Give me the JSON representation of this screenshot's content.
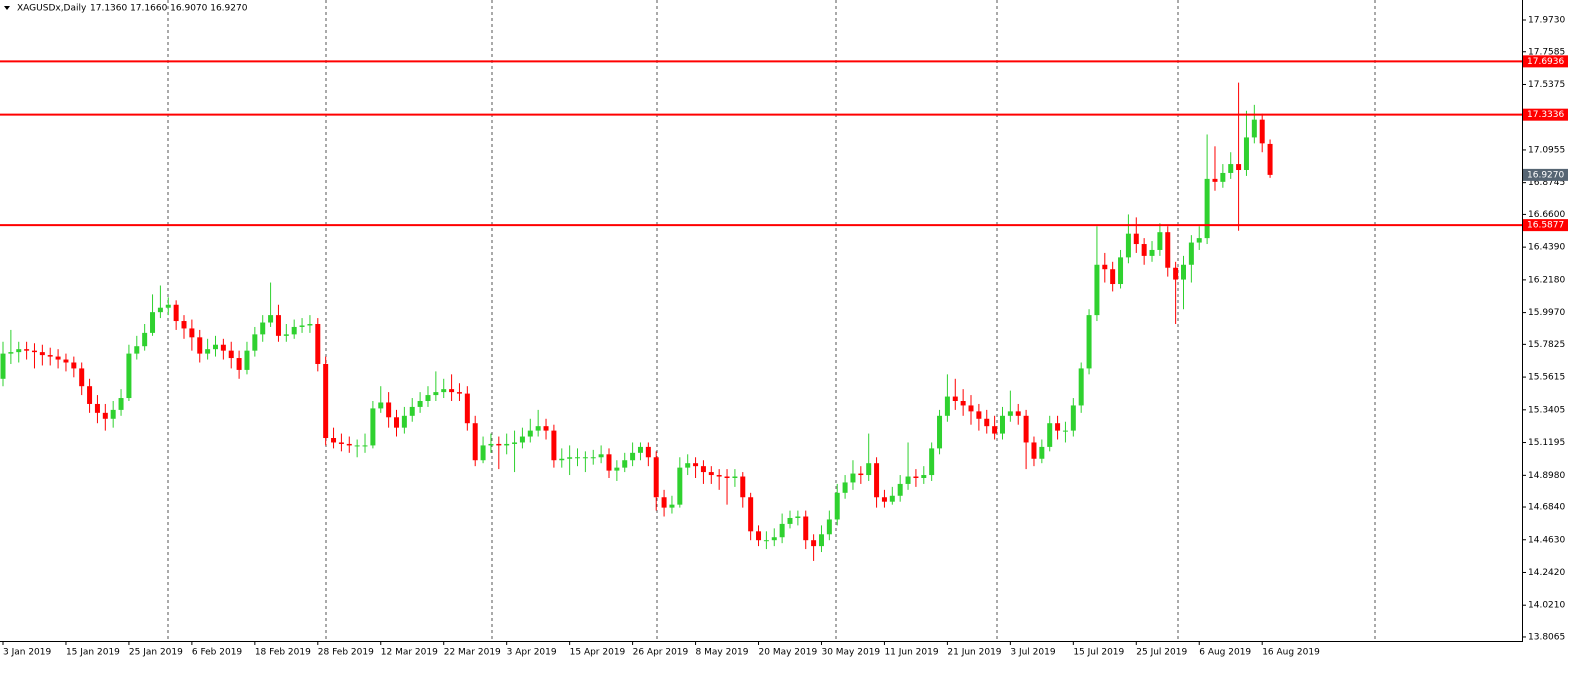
{
  "header": {
    "symbol": "XAGUSDx,Daily",
    "ohlc_text": "17.1360 17.1660 16.9070 16.9270"
  },
  "chart_data": {
    "type": "candlestick",
    "up_color": "#2fd12f",
    "down_color": "#ff0000",
    "level_color": "#ff0000",
    "ylim": [
      13.786,
      18.108
    ],
    "yticks": [
      {
        "value": 17.973,
        "label": "17.9730"
      },
      {
        "value": 17.7585,
        "label": "17.7585"
      },
      {
        "value": 17.5375,
        "label": "17.5375"
      },
      {
        "value": 17.0955,
        "label": "17.0955"
      },
      {
        "value": 16.8745,
        "label": "16.8745"
      },
      {
        "value": 16.66,
        "label": "16.6600"
      },
      {
        "value": 16.439,
        "label": "16.4390"
      },
      {
        "value": 16.218,
        "label": "16.2180"
      },
      {
        "value": 15.997,
        "label": "15.9970"
      },
      {
        "value": 15.7825,
        "label": "15.7825"
      },
      {
        "value": 15.5615,
        "label": "15.5615"
      },
      {
        "value": 15.3405,
        "label": "15.3405"
      },
      {
        "value": 15.1195,
        "label": "15.1195"
      },
      {
        "value": 14.898,
        "label": "14.8980"
      },
      {
        "value": 14.684,
        "label": "14.6840"
      },
      {
        "value": 14.463,
        "label": "14.4630"
      },
      {
        "value": 14.242,
        "label": "14.2420"
      },
      {
        "value": 14.021,
        "label": "14.0210"
      },
      {
        "value": 13.8065,
        "label": "13.8065"
      }
    ],
    "levels": [
      17.6936,
      17.3336,
      16.5877
    ],
    "last_price": {
      "value": 16.927,
      "label": "16.9270"
    },
    "categories": [
      "3 Jan 2019",
      null,
      null,
      null,
      null,
      null,
      null,
      null,
      "15 Jan 2019",
      null,
      null,
      null,
      null,
      null,
      null,
      null,
      "25 Jan 2019",
      null,
      null,
      null,
      null,
      null,
      null,
      null,
      "6 Feb 2019",
      null,
      null,
      null,
      null,
      null,
      null,
      null,
      "18 Feb 2019",
      null,
      null,
      null,
      null,
      null,
      null,
      null,
      "28 Feb 2019",
      null,
      null,
      null,
      null,
      null,
      null,
      null,
      "12 Mar 2019",
      null,
      null,
      null,
      null,
      null,
      null,
      null,
      "22 Mar 2019",
      null,
      null,
      null,
      null,
      null,
      null,
      null,
      "3 Apr 2019",
      null,
      null,
      null,
      null,
      null,
      null,
      null,
      "15 Apr 2019",
      null,
      null,
      null,
      null,
      null,
      null,
      null,
      "26 Apr 2019",
      null,
      null,
      null,
      null,
      null,
      null,
      null,
      "8 May 2019",
      null,
      null,
      null,
      null,
      null,
      null,
      null,
      "20 May 2019",
      null,
      null,
      null,
      null,
      null,
      null,
      null,
      "30 May 2019",
      null,
      null,
      null,
      null,
      null,
      null,
      null,
      "11 Jun 2019",
      null,
      null,
      null,
      null,
      null,
      null,
      null,
      "21 Jun 2019",
      null,
      null,
      null,
      null,
      null,
      null,
      null,
      "3 Jul 2019",
      null,
      null,
      null,
      null,
      null,
      null,
      null,
      "15 Jul 2019",
      null,
      null,
      null,
      null,
      null,
      null,
      null,
      "25 Jul 2019",
      null,
      null,
      null,
      null,
      null,
      null,
      null,
      "6 Aug 2019",
      null,
      null,
      null,
      null,
      null,
      null,
      null,
      "16 Aug 2019",
      null
    ],
    "ohlc": [
      [
        15.55,
        15.8,
        15.5,
        15.72
      ],
      [
        15.72,
        15.88,
        15.65,
        15.73
      ],
      [
        15.73,
        15.8,
        15.66,
        15.75
      ],
      [
        15.75,
        15.8,
        15.68,
        15.74
      ],
      [
        15.74,
        15.79,
        15.62,
        15.73
      ],
      [
        15.73,
        15.78,
        15.64,
        15.71
      ],
      [
        15.71,
        15.76,
        15.64,
        15.7
      ],
      [
        15.7,
        15.75,
        15.62,
        15.68
      ],
      [
        15.68,
        15.72,
        15.6,
        15.66
      ],
      [
        15.66,
        15.7,
        15.56,
        15.62
      ],
      [
        15.62,
        15.66,
        15.44,
        15.5
      ],
      [
        15.5,
        15.55,
        15.32,
        15.38
      ],
      [
        15.38,
        15.44,
        15.25,
        15.32
      ],
      [
        15.32,
        15.38,
        15.2,
        15.28
      ],
      [
        15.28,
        15.4,
        15.22,
        15.34
      ],
      [
        15.34,
        15.48,
        15.3,
        15.42
      ],
      [
        15.42,
        15.78,
        15.4,
        15.72
      ],
      [
        15.72,
        15.84,
        15.68,
        15.77
      ],
      [
        15.77,
        15.92,
        15.74,
        15.86
      ],
      [
        15.86,
        16.12,
        15.84,
        16.0
      ],
      [
        16.0,
        16.18,
        15.96,
        16.03
      ],
      [
        16.03,
        16.1,
        15.98,
        16.05
      ],
      [
        16.05,
        16.08,
        15.88,
        15.94
      ],
      [
        15.94,
        15.98,
        15.82,
        15.89
      ],
      [
        15.89,
        15.95,
        15.74,
        15.83
      ],
      [
        15.83,
        15.88,
        15.66,
        15.72
      ],
      [
        15.72,
        15.82,
        15.68,
        15.75
      ],
      [
        15.75,
        15.84,
        15.7,
        15.78
      ],
      [
        15.78,
        15.82,
        15.68,
        15.74
      ],
      [
        15.74,
        15.8,
        15.62,
        15.69
      ],
      [
        15.69,
        15.74,
        15.55,
        15.61
      ],
      [
        15.61,
        15.8,
        15.58,
        15.74
      ],
      [
        15.74,
        15.9,
        15.7,
        15.85
      ],
      [
        15.85,
        15.98,
        15.8,
        15.93
      ],
      [
        15.93,
        16.2,
        15.9,
        15.98
      ],
      [
        15.98,
        16.05,
        15.8,
        15.84
      ],
      [
        15.84,
        15.92,
        15.8,
        15.85
      ],
      [
        15.85,
        15.95,
        15.82,
        15.9
      ],
      [
        15.9,
        15.96,
        15.86,
        15.91
      ],
      [
        15.91,
        15.98,
        15.86,
        15.92
      ],
      [
        15.92,
        15.96,
        15.6,
        15.65
      ],
      [
        15.65,
        15.7,
        15.1,
        15.15
      ],
      [
        15.15,
        15.22,
        15.08,
        15.12
      ],
      [
        15.12,
        15.18,
        15.06,
        15.11
      ],
      [
        15.11,
        15.16,
        15.05,
        15.1
      ],
      [
        15.1,
        15.14,
        15.02,
        15.1
      ],
      [
        15.1,
        15.18,
        15.05,
        15.1
      ],
      [
        15.1,
        15.4,
        15.08,
        15.35
      ],
      [
        15.35,
        15.5,
        15.32,
        15.39
      ],
      [
        15.39,
        15.46,
        15.22,
        15.29
      ],
      [
        15.29,
        15.34,
        15.16,
        15.22
      ],
      [
        15.22,
        15.36,
        15.18,
        15.3
      ],
      [
        15.3,
        15.42,
        15.26,
        15.36
      ],
      [
        15.36,
        15.46,
        15.32,
        15.4
      ],
      [
        15.4,
        15.5,
        15.36,
        15.44
      ],
      [
        15.44,
        15.6,
        15.4,
        15.46
      ],
      [
        15.46,
        15.55,
        15.42,
        15.48
      ],
      [
        15.48,
        15.58,
        15.4,
        15.46
      ],
      [
        15.46,
        15.52,
        15.4,
        15.45
      ],
      [
        15.45,
        15.5,
        15.2,
        15.25
      ],
      [
        15.25,
        15.3,
        14.96,
        15.0
      ],
      [
        15.0,
        15.16,
        14.98,
        15.1
      ],
      [
        15.1,
        15.18,
        15.05,
        15.11
      ],
      [
        15.11,
        15.16,
        14.94,
        15.1
      ],
      [
        15.1,
        15.18,
        15.04,
        15.11
      ],
      [
        15.11,
        15.2,
        14.92,
        15.12
      ],
      [
        15.12,
        15.22,
        15.08,
        15.16
      ],
      [
        15.16,
        15.28,
        15.12,
        15.2
      ],
      [
        15.2,
        15.34,
        15.16,
        15.23
      ],
      [
        15.23,
        15.28,
        15.14,
        15.2
      ],
      [
        15.2,
        15.24,
        14.95,
        15.0
      ],
      [
        15.0,
        15.08,
        14.95,
        15.01
      ],
      [
        15.01,
        15.1,
        14.9,
        15.02
      ],
      [
        15.02,
        15.08,
        14.96,
        15.02
      ],
      [
        15.02,
        15.06,
        14.92,
        15.02
      ],
      [
        15.02,
        15.07,
        14.97,
        15.02
      ],
      [
        15.02,
        15.1,
        14.98,
        15.04
      ],
      [
        15.04,
        15.08,
        14.88,
        14.93
      ],
      [
        14.93,
        15.0,
        14.86,
        14.95
      ],
      [
        14.95,
        15.05,
        14.92,
        15.0
      ],
      [
        15.0,
        15.12,
        14.96,
        15.05
      ],
      [
        15.05,
        15.12,
        15.0,
        15.09
      ],
      [
        15.09,
        15.12,
        14.96,
        15.02
      ],
      [
        15.02,
        15.06,
        14.66,
        14.75
      ],
      [
        14.75,
        14.8,
        14.62,
        14.68
      ],
      [
        14.68,
        14.76,
        14.64,
        14.7
      ],
      [
        14.7,
        15.02,
        14.68,
        14.95
      ],
      [
        14.95,
        15.04,
        14.9,
        14.98
      ],
      [
        14.98,
        15.02,
        14.88,
        14.96
      ],
      [
        14.96,
        15.0,
        14.84,
        14.92
      ],
      [
        14.92,
        14.96,
        14.84,
        14.9
      ],
      [
        14.9,
        14.94,
        14.8,
        14.89
      ],
      [
        14.89,
        14.94,
        14.7,
        14.88
      ],
      [
        14.88,
        14.94,
        14.82,
        14.89
      ],
      [
        14.89,
        14.92,
        14.68,
        14.75
      ],
      [
        14.75,
        14.78,
        14.46,
        14.52
      ],
      [
        14.52,
        14.56,
        14.42,
        14.46
      ],
      [
        14.46,
        14.52,
        14.4,
        14.46
      ],
      [
        14.46,
        14.54,
        14.42,
        14.48
      ],
      [
        14.48,
        14.64,
        14.44,
        14.57
      ],
      [
        14.57,
        14.66,
        14.54,
        14.61
      ],
      [
        14.61,
        14.66,
        14.56,
        14.62
      ],
      [
        14.62,
        14.66,
        14.4,
        14.46
      ],
      [
        14.46,
        14.5,
        14.32,
        14.42
      ],
      [
        14.42,
        14.56,
        14.38,
        14.5
      ],
      [
        14.5,
        14.66,
        14.46,
        14.6
      ],
      [
        14.6,
        14.84,
        14.56,
        14.78
      ],
      [
        14.78,
        14.9,
        14.74,
        14.85
      ],
      [
        14.85,
        15.0,
        14.8,
        14.91
      ],
      [
        14.91,
        14.96,
        14.84,
        14.9
      ],
      [
        14.9,
        15.18,
        14.86,
        14.98
      ],
      [
        14.98,
        15.02,
        14.68,
        14.75
      ],
      [
        14.75,
        14.8,
        14.68,
        14.72
      ],
      [
        14.72,
        14.82,
        14.7,
        14.76
      ],
      [
        14.76,
        14.9,
        14.72,
        14.84
      ],
      [
        14.84,
        15.12,
        14.8,
        14.89
      ],
      [
        14.89,
        14.94,
        14.82,
        14.88
      ],
      [
        14.88,
        14.96,
        14.84,
        14.9
      ],
      [
        14.9,
        15.12,
        14.86,
        15.08
      ],
      [
        15.08,
        15.34,
        15.04,
        15.3
      ],
      [
        15.3,
        15.58,
        15.26,
        15.43
      ],
      [
        15.43,
        15.55,
        15.34,
        15.4
      ],
      [
        15.4,
        15.48,
        15.3,
        15.37
      ],
      [
        15.37,
        15.44,
        15.24,
        15.33
      ],
      [
        15.33,
        15.38,
        15.2,
        15.28
      ],
      [
        15.28,
        15.34,
        15.18,
        15.23
      ],
      [
        15.23,
        15.3,
        15.14,
        15.18
      ],
      [
        15.18,
        15.36,
        15.14,
        15.3
      ],
      [
        15.3,
        15.47,
        15.26,
        15.33
      ],
      [
        15.33,
        15.38,
        15.24,
        15.3
      ],
      [
        15.3,
        15.34,
        14.94,
        15.12
      ],
      [
        15.12,
        15.16,
        14.96,
        15.01
      ],
      [
        15.01,
        15.14,
        14.98,
        15.09
      ],
      [
        15.09,
        15.3,
        15.06,
        15.25
      ],
      [
        15.25,
        15.3,
        15.14,
        15.2
      ],
      [
        15.2,
        15.26,
        15.12,
        15.2
      ],
      [
        15.2,
        15.42,
        15.16,
        15.37
      ],
      [
        15.37,
        15.66,
        15.32,
        15.62
      ],
      [
        15.62,
        16.02,
        15.58,
        15.98
      ],
      [
        15.98,
        16.58,
        15.94,
        16.32
      ],
      [
        16.32,
        16.4,
        16.2,
        16.29
      ],
      [
        16.29,
        16.34,
        16.14,
        16.19
      ],
      [
        16.19,
        16.42,
        16.16,
        16.37
      ],
      [
        16.37,
        16.66,
        16.33,
        16.53
      ],
      [
        16.53,
        16.64,
        16.4,
        16.46
      ],
      [
        16.46,
        16.5,
        16.32,
        16.38
      ],
      [
        16.38,
        16.48,
        16.34,
        16.42
      ],
      [
        16.42,
        16.6,
        16.38,
        16.54
      ],
      [
        16.54,
        16.58,
        16.24,
        16.3
      ],
      [
        16.3,
        16.34,
        15.92,
        16.22
      ],
      [
        16.22,
        16.38,
        16.02,
        16.32
      ],
      [
        16.32,
        16.52,
        16.2,
        16.47
      ],
      [
        16.47,
        16.58,
        16.42,
        16.5
      ],
      [
        16.5,
        17.2,
        16.46,
        16.9
      ],
      [
        16.9,
        17.12,
        16.82,
        16.88
      ],
      [
        16.88,
        17.0,
        16.84,
        16.94
      ],
      [
        16.94,
        17.08,
        16.9,
        17.0
      ],
      [
        17.0,
        17.55,
        16.55,
        16.96
      ],
      [
        16.96,
        17.36,
        16.92,
        17.18
      ],
      [
        17.18,
        17.4,
        17.14,
        17.3
      ],
      [
        17.3,
        17.34,
        17.08,
        17.14
      ],
      [
        17.136,
        17.166,
        16.907,
        16.927
      ]
    ]
  }
}
